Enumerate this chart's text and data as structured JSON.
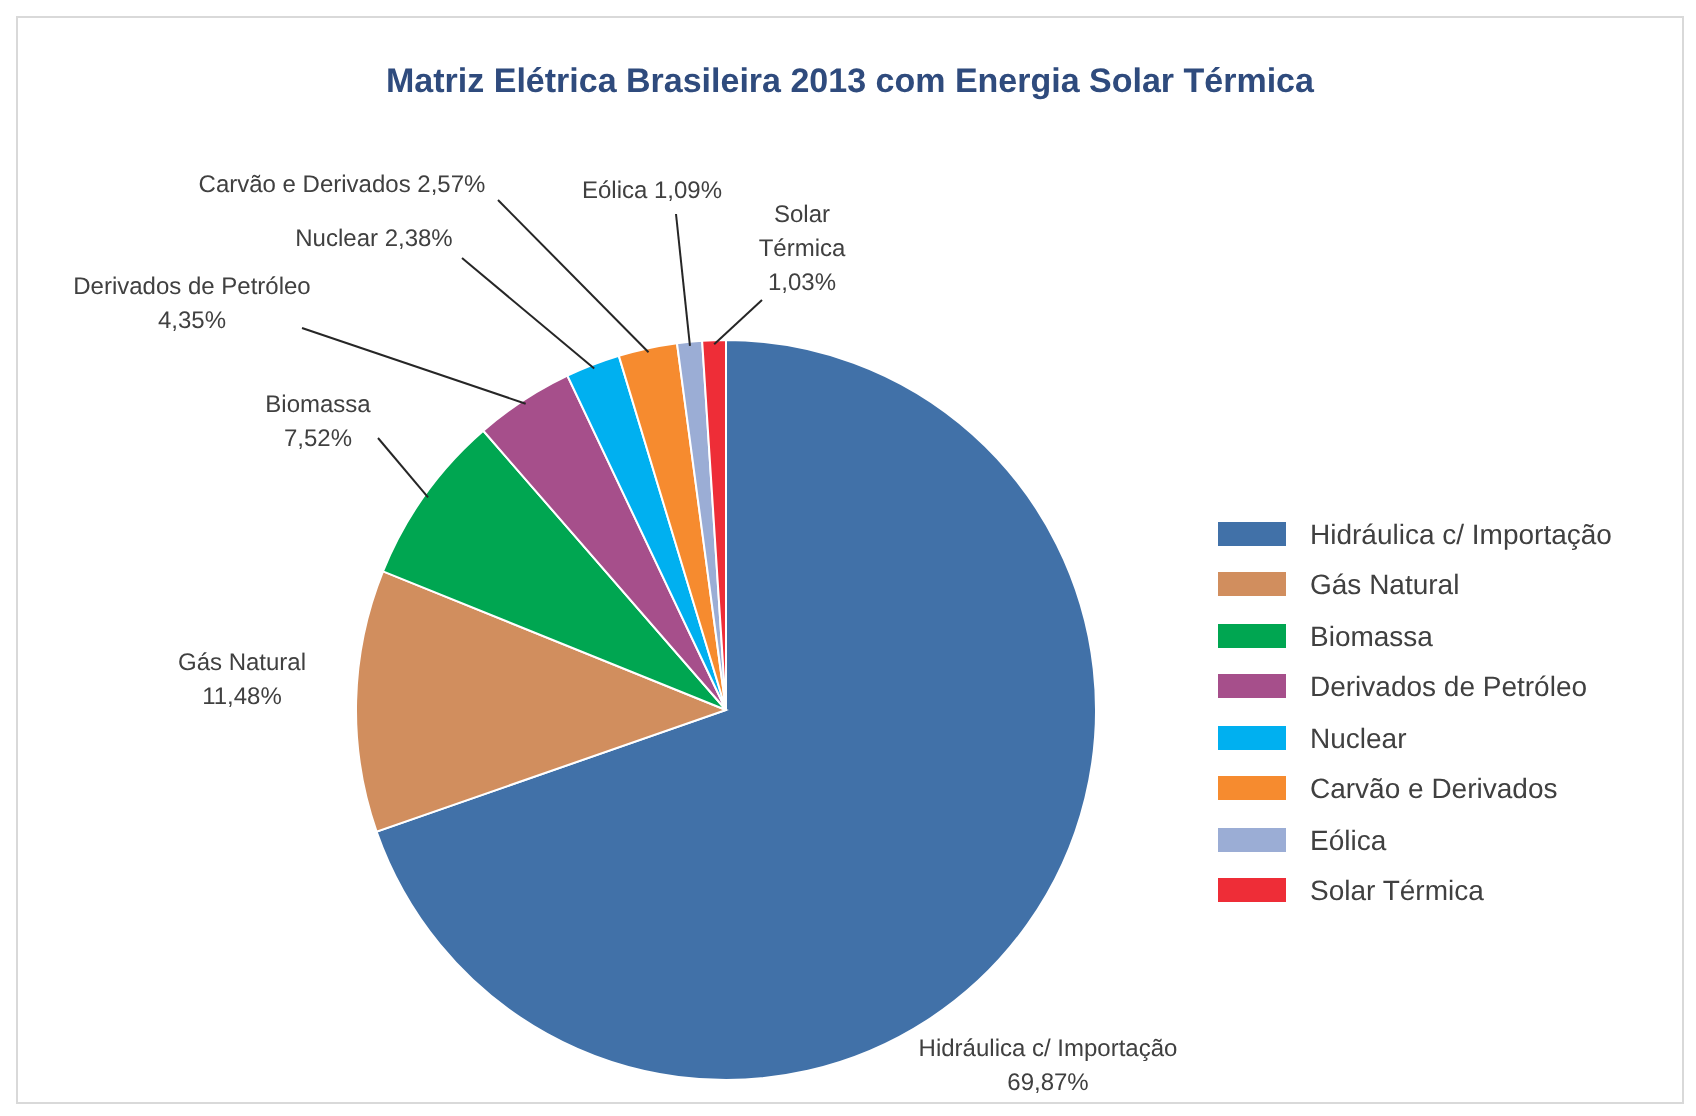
{
  "chart_data": {
    "type": "pie",
    "title": "Matriz Elétrica Brasileira 2013 com Energia Solar Térmica",
    "categories": [
      "Hidráulica c/ Importação",
      "Gás Natural",
      "Biomassa",
      "Derivados de Petróleo",
      "Nuclear",
      "Carvão e Derivados",
      "Eólica",
      "Solar Térmica"
    ],
    "values": [
      69.87,
      11.48,
      7.52,
      4.35,
      2.38,
      2.57,
      1.09,
      1.03
    ],
    "value_labels": [
      "69,87%",
      "11,48%",
      "7,52%",
      "4,35%",
      "2,38%",
      "2,57%",
      "1,09%",
      "1,03%"
    ],
    "colors": [
      "#4171a8",
      "#d18e5e",
      "#00a651",
      "#a64f8b",
      "#00b0f0",
      "#f68b2f",
      "#9badd5",
      "#ee2d37"
    ],
    "legend": "right"
  }
}
